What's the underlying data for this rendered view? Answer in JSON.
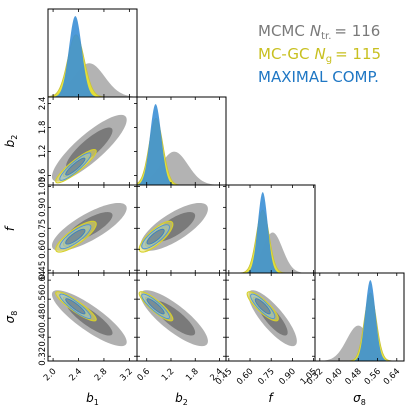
{
  "chart_data": {
    "type": "corner",
    "parameters": [
      {
        "symbol": "b",
        "sub": "1",
        "range": [
          1.92,
          3.32
        ],
        "ticks": [
          "2.0",
          "2.4",
          "2.8",
          "3.2"
        ],
        "tick_values": [
          2.0,
          2.4,
          2.8,
          3.2
        ]
      },
      {
        "symbol": "b",
        "sub": "2",
        "range": [
          0.36,
          2.56
        ],
        "ticks": [
          "0.6",
          "1.2",
          "1.8",
          "2.4"
        ],
        "tick_values": [
          0.6,
          1.2,
          1.8,
          2.4
        ]
      },
      {
        "symbol": "f",
        "sub": "",
        "range": [
          0.43,
          1.06
        ],
        "ticks": [
          "0.45",
          "0.60",
          "0.75",
          "0.90",
          "1.05"
        ],
        "tick_values": [
          0.45,
          0.6,
          0.75,
          0.9,
          1.05
        ]
      },
      {
        "symbol": "σ",
        "sub": "8",
        "range": [
          0.3,
          0.67
        ],
        "ticks": [
          "0.32",
          "0.40",
          "0.48",
          "0.56",
          "0.64"
        ],
        "tick_values": [
          0.32,
          0.4,
          0.48,
          0.56,
          0.64
        ]
      }
    ],
    "series": [
      {
        "key": "mcmc",
        "color": "#999999",
        "label": {
          "text": "MCMC",
          "math_symbol": "N",
          "math_sub": "tr.",
          "value": "= 116"
        },
        "mean": [
          2.57,
          1.28,
          0.76,
          0.48
        ],
        "std": [
          0.24,
          0.34,
          0.07,
          0.048
        ],
        "corr": [
          [
            1.0,
            0.85,
            0.78,
            -0.85
          ],
          [
            0.85,
            1.0,
            0.75,
            -0.82
          ],
          [
            0.78,
            0.75,
            1.0,
            -0.82
          ],
          [
            -0.85,
            -0.82,
            -0.82,
            1.0
          ]
        ]
      },
      {
        "key": "mcgc",
        "color": "#e8e22a",
        "label": {
          "text": "MC-GC",
          "math_symbol": "N",
          "math_sub": "g",
          "value": "= 115"
        },
        "mean": [
          2.36,
          0.83,
          0.69,
          0.53
        ],
        "std": [
          0.13,
          0.17,
          0.045,
          0.025
        ],
        "corr": [
          [
            1.0,
            0.9,
            0.82,
            -0.9
          ],
          [
            0.9,
            1.0,
            0.8,
            -0.88
          ],
          [
            0.82,
            0.8,
            1.0,
            -0.85
          ],
          [
            -0.9,
            -0.88,
            -0.85,
            1.0
          ]
        ]
      },
      {
        "key": "maximal",
        "color": "#3b8fd6",
        "label": {
          "text": "MAXIMAL COMP.",
          "math_symbol": "",
          "math_sub": "",
          "value": ""
        },
        "mean": [
          2.35,
          0.82,
          0.69,
          0.53
        ],
        "std": [
          0.1,
          0.14,
          0.035,
          0.021
        ],
        "corr": [
          [
            1.0,
            0.9,
            0.82,
            -0.9
          ],
          [
            0.9,
            1.0,
            0.8,
            -0.88
          ],
          [
            0.82,
            0.8,
            1.0,
            -0.85
          ],
          [
            -0.9,
            -0.88,
            -0.85,
            1.0
          ]
        ]
      }
    ],
    "grid": false,
    "legend_position": "top-right"
  }
}
